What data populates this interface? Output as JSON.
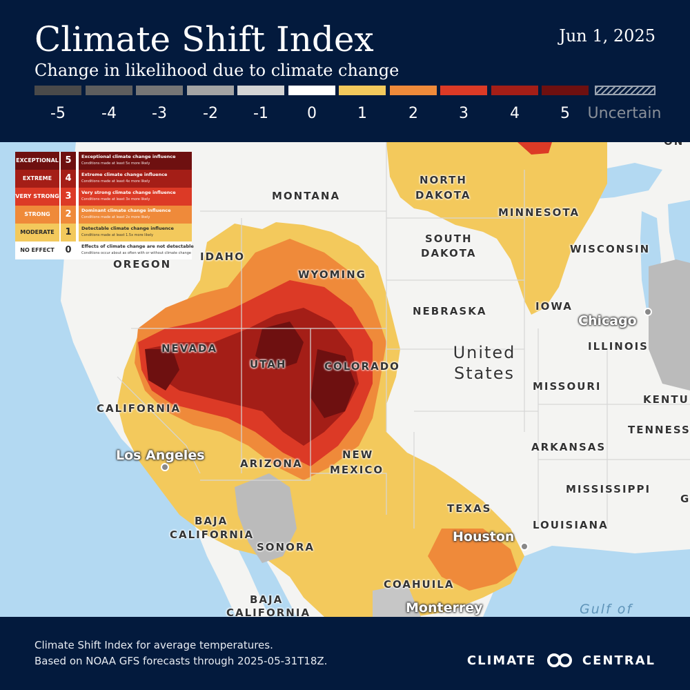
{
  "header": {
    "title": "Climate Shift Index",
    "subtitle": "Change in likelihood due to climate change",
    "date": "Jun 1, 2025"
  },
  "scale": {
    "items": [
      {
        "label": "-5",
        "color": "#4a4a4a"
      },
      {
        "label": "-4",
        "color": "#5e5e5e"
      },
      {
        "label": "-3",
        "color": "#767676"
      },
      {
        "label": "-2",
        "color": "#a4a4a4"
      },
      {
        "label": "-1",
        "color": "#d4d4d4"
      },
      {
        "label": "0",
        "color": "#ffffff"
      },
      {
        "label": "1",
        "color": "#f3c95c"
      },
      {
        "label": "2",
        "color": "#ef8a3a"
      },
      {
        "label": "3",
        "color": "#dc3a26"
      },
      {
        "label": "4",
        "color": "#a41e17"
      },
      {
        "label": "5",
        "color": "#6e1010"
      }
    ],
    "uncertain_label": "Uncertain"
  },
  "legend": {
    "rows": [
      {
        "category": "EXCEPTIONAL",
        "level": "5",
        "title": "Exceptional climate change influence",
        "subtitle": "Conditions made at least 5x more likely",
        "color": "#6e1010",
        "text_color": "#ffffff"
      },
      {
        "category": "EXTREME",
        "level": "4",
        "title": "Extreme climate change influence",
        "subtitle": "Conditions made at least 4x more likely",
        "color": "#a41e17",
        "text_color": "#ffffff"
      },
      {
        "category": "VERY STRONG",
        "level": "3",
        "title": "Very strong climate change influence",
        "subtitle": "Conditions made at least 3x more likely",
        "color": "#dc3a26",
        "text_color": "#ffffff"
      },
      {
        "category": "STRONG",
        "level": "2",
        "title": "Dominant climate change influence",
        "subtitle": "Conditions made at least 2x more likely",
        "color": "#ef8a3a",
        "text_color": "#ffffff"
      },
      {
        "category": "MODERATE",
        "level": "1",
        "title": "Detectable climate change influence",
        "subtitle": "Conditions made at least 1.5x more likely",
        "color": "#f3c95c",
        "text_color": "#2a2a2a"
      },
      {
        "category": "NO EFFECT",
        "level": "0",
        "title": "Effects of climate change are not detectable",
        "subtitle": "Conditions occur about as often with or without climate change",
        "color": "#ffffff",
        "text_color": "#2a2a2a"
      }
    ]
  },
  "map": {
    "state_labels": [
      "MONTANA",
      "NORTH",
      "DAKOTA",
      "MINNESOTA",
      "SOUTH",
      "DAKOTA",
      "WISCONSIN",
      "IDAHO",
      "OREGON",
      "WYOMING",
      "IOWA",
      "NEBRASKA",
      "ILLINOIS",
      "NEVADA",
      "UTAH",
      "COLORADO",
      "MISSOURI",
      "KENTU",
      "CALIFORNIA",
      "TENNESS",
      "ARKANSAS",
      "ARIZONA",
      "NEW",
      "MEXICO",
      "MISSISSIPPI",
      "G",
      "TEXAS",
      "LOUISIANA",
      "BAJA",
      "CALIFORNIA",
      "SONORA",
      "COAHUILA",
      "BAJA",
      "CALIFORNIA"
    ],
    "cities": [
      "Chicago",
      "Los Angeles",
      "Houston",
      "Monterrey"
    ],
    "country": [
      "United",
      "States"
    ],
    "water": [
      "Gulf of"
    ],
    "corner_fragment": "ON"
  },
  "footer": {
    "note_line1": "Climate Shift Index for average temperatures.",
    "note_line2": "Based on NOAA GFS forecasts through 2025-05-31T18Z.",
    "brand_left": "CLIMATE",
    "brand_right": "CENTRAL"
  }
}
